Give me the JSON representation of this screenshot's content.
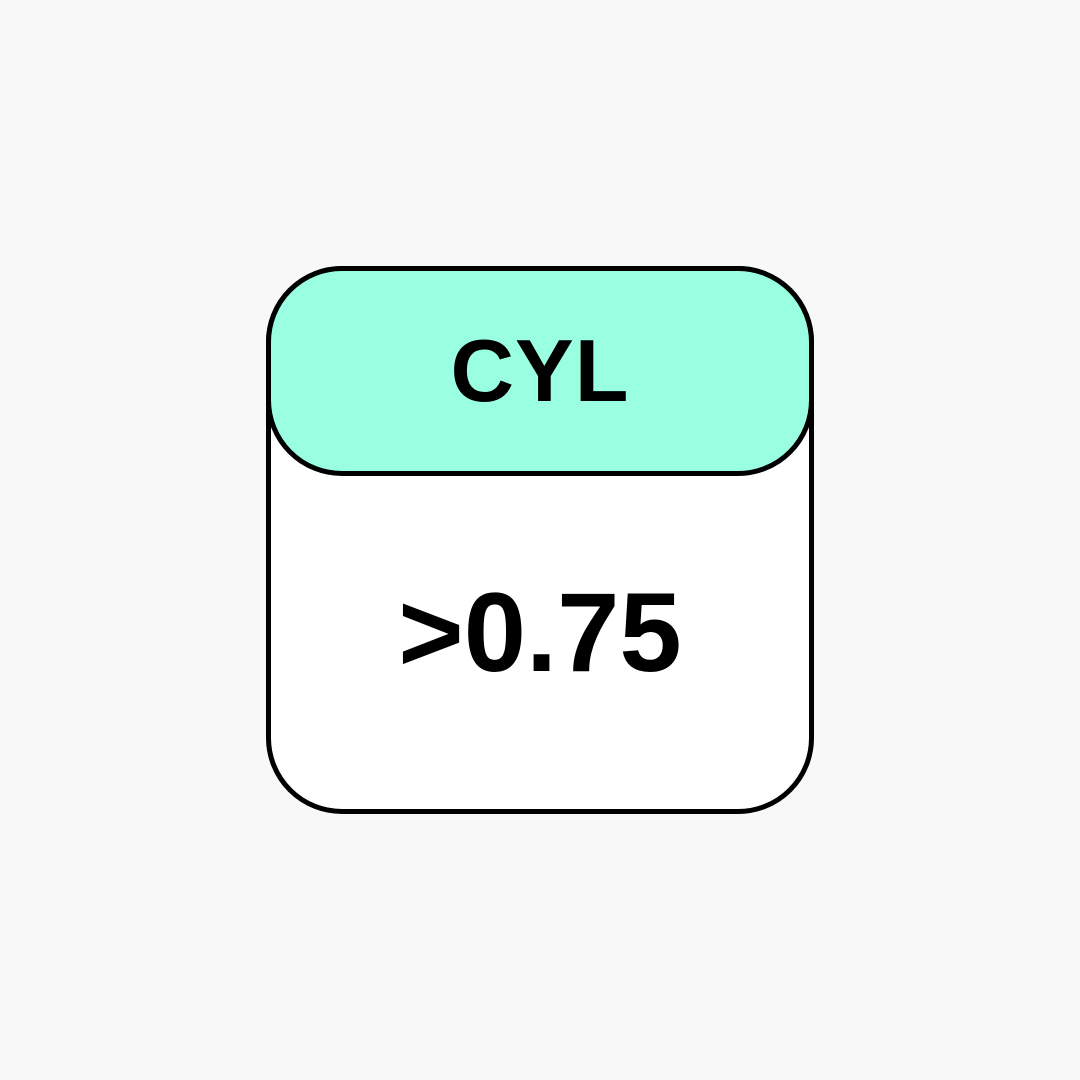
{
  "badge": {
    "header_label": "CYL",
    "value": ">0.75",
    "header_color": "#99ffe0",
    "body_color": "#ffffff",
    "border_color": "#000000",
    "background_color": "#f8f8f8"
  }
}
